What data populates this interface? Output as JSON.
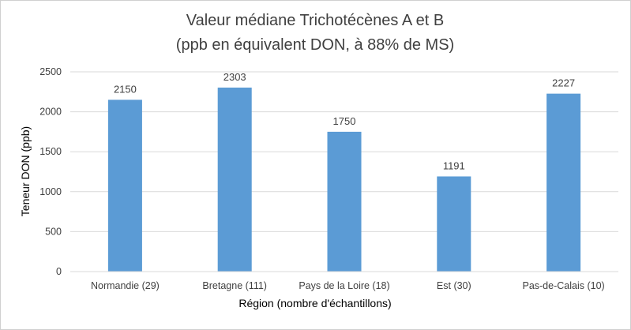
{
  "chart_data": {
    "type": "bar",
    "title_line1": "Valeur médiane Trichotécènes A et B",
    "title_line2": "(ppb en équivalent DON, à 88% de MS)",
    "xlabel": "Région (nombre d'échantillons)",
    "ylabel": "Teneur DON (ppb)",
    "categories": [
      "Normandie (29)",
      "Bretagne (111)",
      "Pays de la Loire (18)",
      "Est (30)",
      "Pas-de-Calais (10)"
    ],
    "values": [
      2150,
      2303,
      1750,
      1191,
      2227
    ],
    "data_labels": [
      "2150",
      "2303",
      "1750",
      "1191",
      "2227"
    ],
    "ylim": [
      0,
      2500
    ],
    "yticks": [
      0,
      500,
      1000,
      1500,
      2000,
      2500
    ],
    "grid": true,
    "legend": "none",
    "bar_color": "#5B9BD5",
    "grid_color": "#D9D9D9"
  }
}
